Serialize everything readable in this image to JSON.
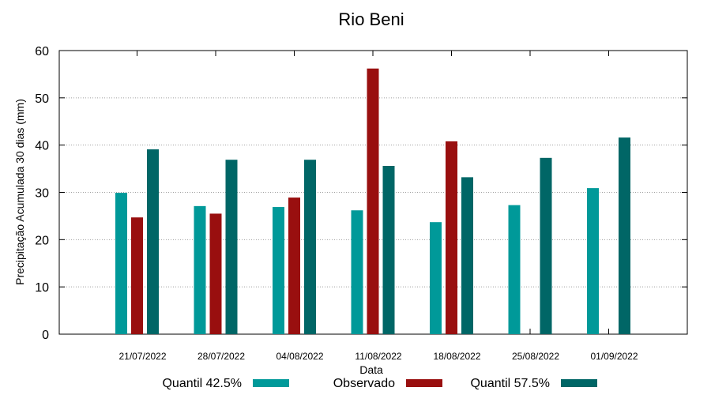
{
  "chart_data": {
    "type": "bar",
    "title": "Rio Beni",
    "xlabel": "Data",
    "ylabel": "Precipitação Acumulada 30 dias (mm)",
    "ylim": [
      0,
      60
    ],
    "yticks": [
      0,
      10,
      20,
      30,
      40,
      50,
      60
    ],
    "grid": true,
    "legend_position": "bottom",
    "categories": [
      "21/07/2022",
      "28/07/2022",
      "04/08/2022",
      "11/08/2022",
      "18/08/2022",
      "25/08/2022",
      "01/09/2022"
    ],
    "series": [
      {
        "name": "Quantil 42.5%",
        "color": "#009999",
        "values": [
          29.9,
          27.1,
          26.9,
          26.2,
          23.7,
          27.3,
          30.9
        ]
      },
      {
        "name": "Observado",
        "color": "#990f0f",
        "values": [
          24.7,
          25.5,
          28.9,
          56.2,
          40.8,
          null,
          null
        ]
      },
      {
        "name": "Quantil 57.5%",
        "color": "#006666",
        "values": [
          39.1,
          36.9,
          36.9,
          35.6,
          33.2,
          37.3,
          41.6
        ]
      }
    ]
  }
}
